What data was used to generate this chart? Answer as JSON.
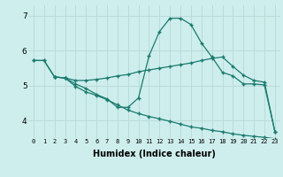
{
  "xlabel": "Humidex (Indice chaleur)",
  "bg_color": "#ceeeed",
  "line_color": "#1a7a6e",
  "grid_color": "#b8d8d6",
  "xlim": [
    -0.5,
    23.5
  ],
  "ylim": [
    3.5,
    7.3
  ],
  "xticks": [
    0,
    1,
    2,
    3,
    4,
    5,
    6,
    7,
    8,
    9,
    10,
    11,
    12,
    13,
    14,
    15,
    16,
    17,
    18,
    19,
    20,
    21,
    22,
    23
  ],
  "yticks": [
    4,
    5,
    6,
    7
  ],
  "line1_x": [
    0,
    1,
    2,
    3,
    4,
    5,
    6,
    7,
    8,
    9,
    10,
    11,
    12,
    13,
    14,
    15,
    16,
    17,
    18,
    19,
    20,
    21,
    22,
    23
  ],
  "line1_y": [
    5.72,
    5.72,
    5.25,
    5.22,
    5.05,
    4.92,
    4.75,
    4.62,
    4.38,
    4.38,
    4.65,
    5.85,
    6.55,
    6.93,
    6.93,
    6.75,
    6.22,
    5.82,
    5.38,
    5.28,
    5.05,
    5.05,
    5.02,
    3.68
  ],
  "line2_x": [
    0,
    1,
    2,
    3,
    4,
    5,
    6,
    7,
    8,
    9,
    10,
    11,
    12,
    13,
    14,
    15,
    16,
    17,
    18,
    19,
    20,
    21,
    22,
    23
  ],
  "line2_y": [
    5.72,
    5.72,
    5.25,
    5.22,
    5.15,
    5.15,
    5.18,
    5.22,
    5.28,
    5.32,
    5.4,
    5.45,
    5.5,
    5.55,
    5.6,
    5.65,
    5.72,
    5.78,
    5.82,
    5.55,
    5.3,
    5.15,
    5.1,
    3.68
  ],
  "line3_x": [
    2,
    3,
    4,
    5,
    6,
    7,
    8,
    9,
    10,
    11,
    12,
    13,
    14,
    15,
    16,
    17,
    18,
    19,
    20,
    21,
    22,
    23
  ],
  "line3_y": [
    5.25,
    5.22,
    4.98,
    4.82,
    4.72,
    4.6,
    4.45,
    4.3,
    4.2,
    4.12,
    4.05,
    3.98,
    3.9,
    3.82,
    3.78,
    3.72,
    3.68,
    3.62,
    3.58,
    3.55,
    3.52,
    3.48
  ]
}
